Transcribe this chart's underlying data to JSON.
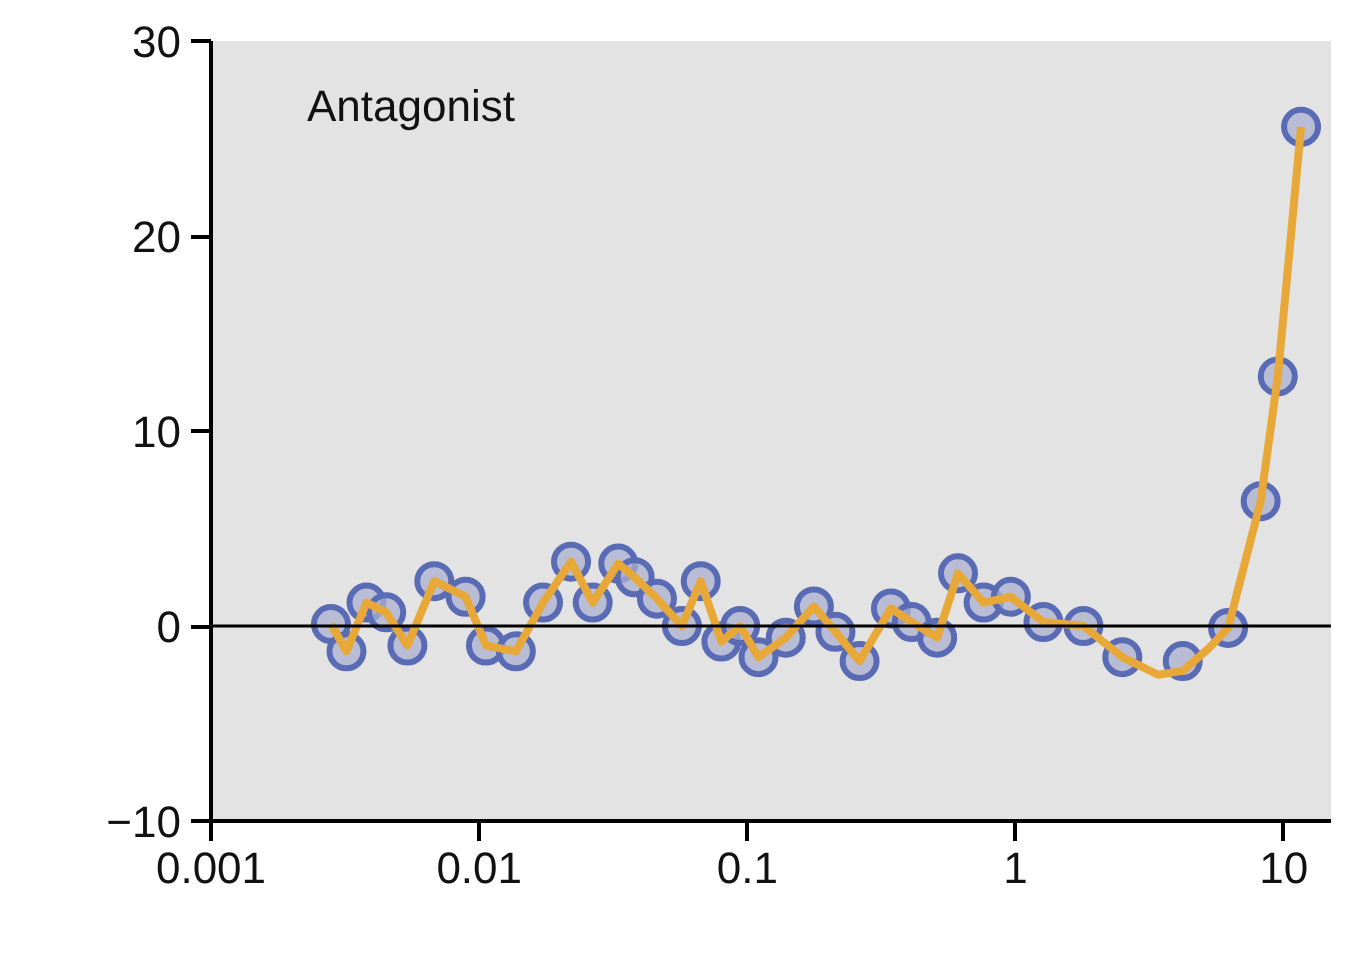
{
  "chart_data": {
    "type": "scatter",
    "annotations": [
      "Antagonist"
    ],
    "log": "x",
    "xlim": [
      0.001,
      15
    ],
    "xticks": [
      {
        "value": 0.001,
        "label": "0.001"
      },
      {
        "value": 0.01,
        "label": "0.01"
      },
      {
        "value": 0.1,
        "label": "0.1"
      },
      1,
      10
    ],
    "ylim": [
      -10,
      30
    ],
    "yticks": [
      {
        "value": -10,
        "label": "−10"
      },
      0,
      10,
      20,
      30
    ],
    "ref_lines": [
      {
        "axis": "y",
        "value": 0,
        "color": "#000000"
      }
    ],
    "series": [
      {
        "type": "line",
        "marker": "none",
        "color": "#e8a838",
        "line_style": "solid",
        "x": [
          0.0028,
          0.0032,
          0.0038,
          0.0045,
          0.0054,
          0.0068,
          0.0089,
          0.0106,
          0.0137,
          0.0173,
          0.022,
          0.0265,
          0.033,
          0.038,
          0.046,
          0.057,
          0.067,
          0.08,
          0.094,
          0.11,
          0.139,
          0.177,
          0.213,
          0.262,
          0.343,
          0.41,
          0.51,
          0.61,
          0.76,
          0.96,
          1.27,
          1.79,
          2.5,
          3.4,
          4.2,
          5.2,
          6.2,
          8.2,
          9.5,
          11.6
        ],
        "values": [
          0.1,
          -1.3,
          1.2,
          0.7,
          -1,
          2.3,
          1.5,
          -1,
          -1.3,
          1.2,
          3.3,
          1.2,
          3.2,
          2.5,
          1.4,
          0,
          2.3,
          -0.8,
          0,
          -1.6,
          -0.6,
          1,
          -0.3,
          -1.8,
          0.9,
          0.2,
          -0.6,
          2.7,
          1.2,
          1.5,
          0.2,
          0,
          -1.6,
          -2.5,
          -2.3,
          -1.2,
          -0.1,
          6.4,
          12.8,
          25.6
        ]
      },
      {
        "marker": "circle",
        "color": "#5a6bb5",
        "x": [
          0.0028,
          0.0032,
          0.0038,
          0.0045,
          0.0054,
          0.0068,
          0.0089,
          0.0106,
          0.0137,
          0.0173,
          0.022,
          0.0265,
          0.033,
          0.038,
          0.046,
          0.057,
          0.067,
          0.08,
          0.094,
          0.11,
          0.139,
          0.177,
          0.213,
          0.262,
          0.343,
          0.41,
          0.51,
          0.61,
          0.76,
          0.96,
          1.27,
          1.79,
          2.5,
          4.2,
          6.2,
          8.2,
          9.5,
          11.6
        ],
        "values": [
          0.1,
          -1.3,
          1.2,
          0.7,
          -1,
          2.3,
          1.5,
          -1,
          -1.3,
          1.2,
          3.3,
          1.2,
          3.2,
          2.5,
          1.4,
          0,
          2.3,
          -0.8,
          0,
          -1.6,
          -0.6,
          1,
          -0.3,
          -1.8,
          0.9,
          0.2,
          -0.6,
          2.7,
          1.2,
          1.5,
          0.2,
          0,
          -1.6,
          -1.8,
          -0.1,
          6.4,
          12.8,
          25.6
        ]
      }
    ]
  }
}
